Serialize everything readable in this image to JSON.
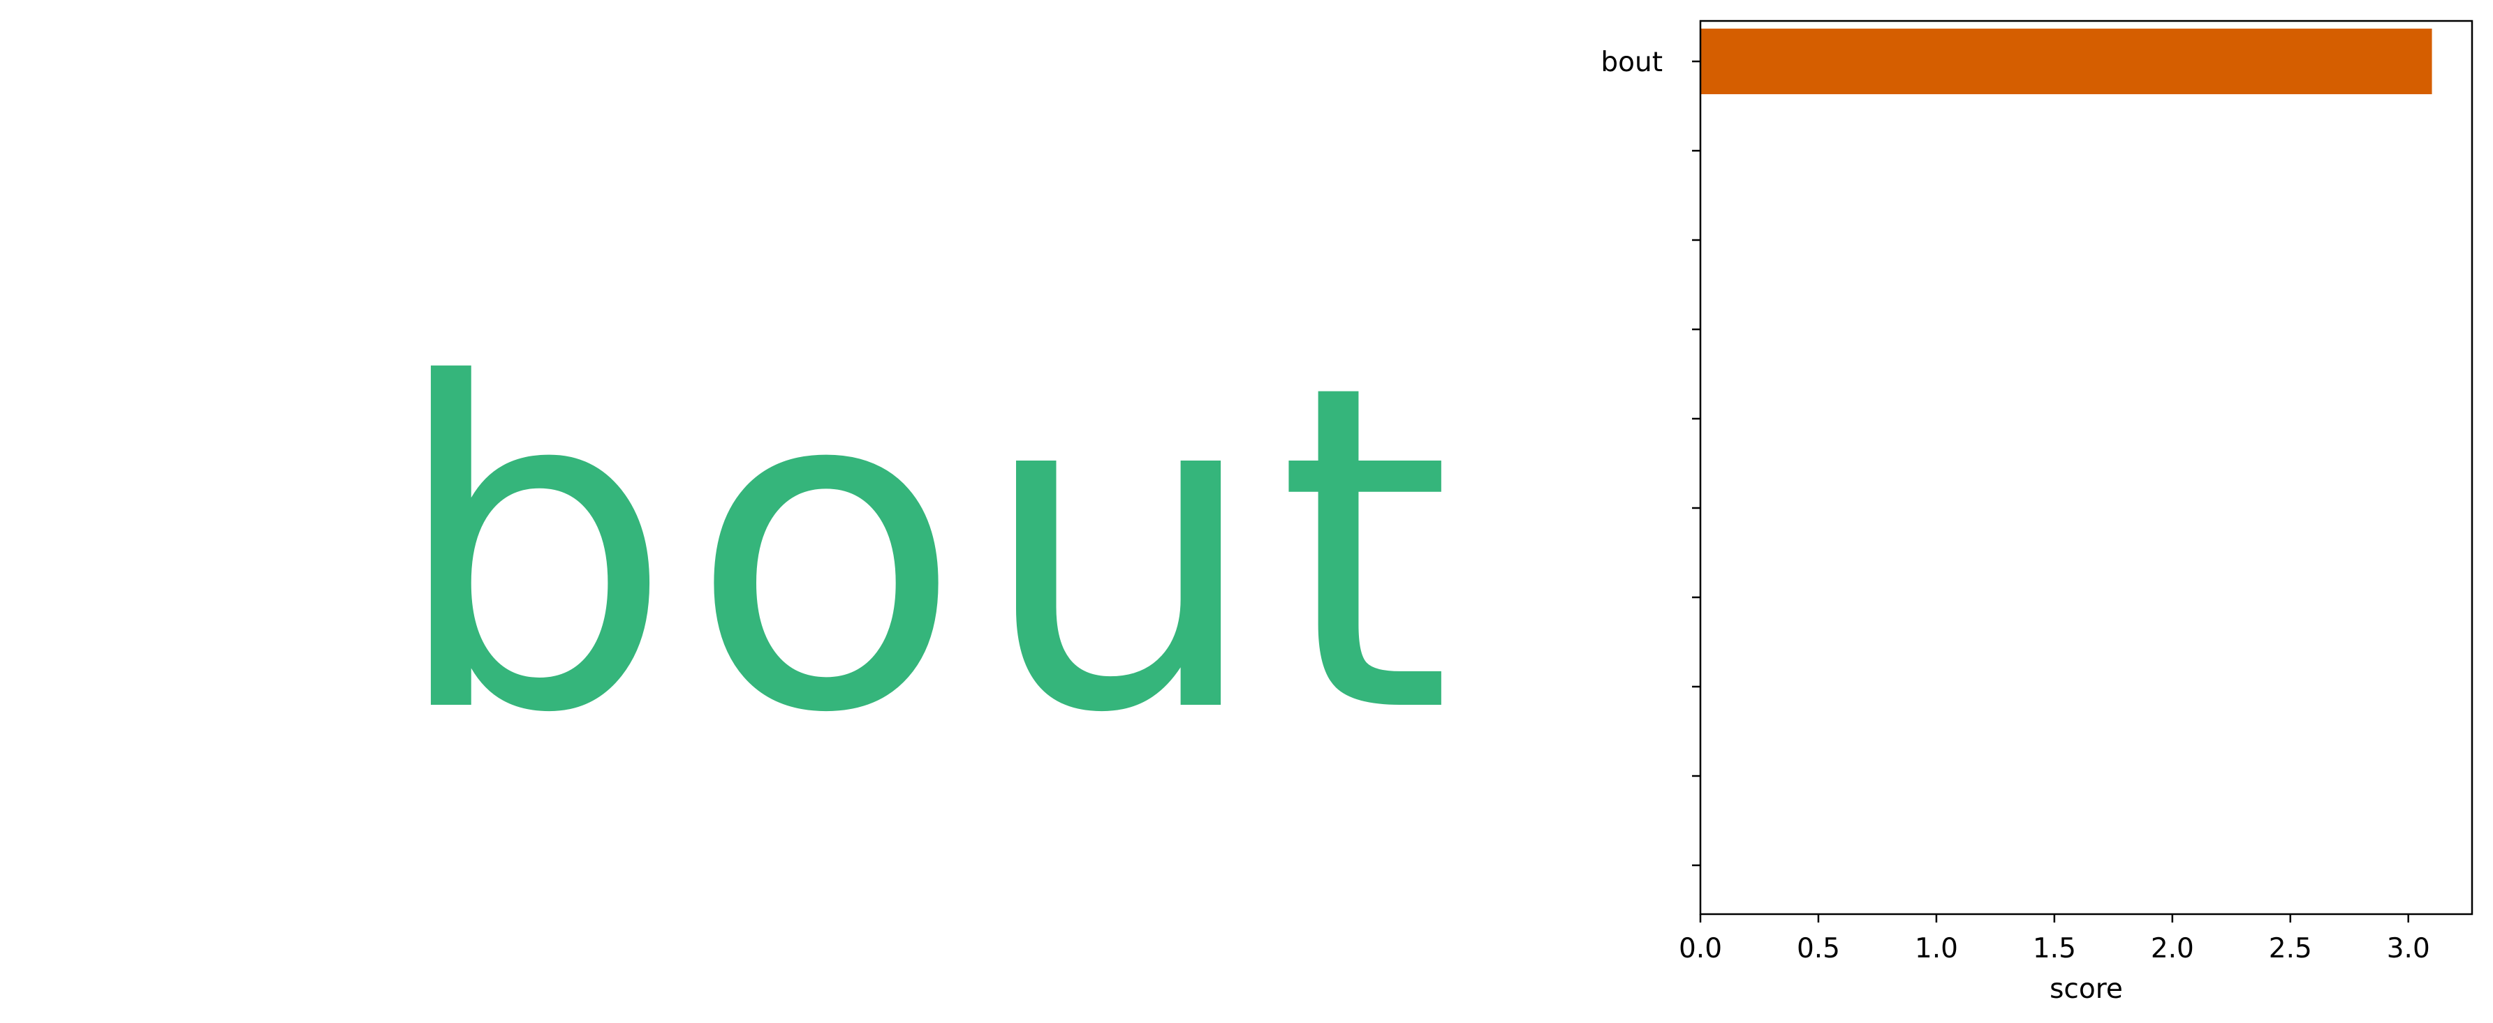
{
  "word_panel": {
    "text": "bout",
    "color": "#35b57b"
  },
  "chart_data": {
    "type": "bar",
    "orientation": "horizontal",
    "categories": [
      "bout"
    ],
    "values": [
      3.1
    ],
    "bar_color": "#d55e00",
    "xlabel": "score",
    "ylabel": "",
    "title": "",
    "xlim": [
      0,
      3.27
    ],
    "xticks": [
      "0.0",
      "0.5",
      "1.0",
      "1.5",
      "2.0",
      "2.5",
      "3.0"
    ],
    "y_slots": 10,
    "grid": false
  }
}
